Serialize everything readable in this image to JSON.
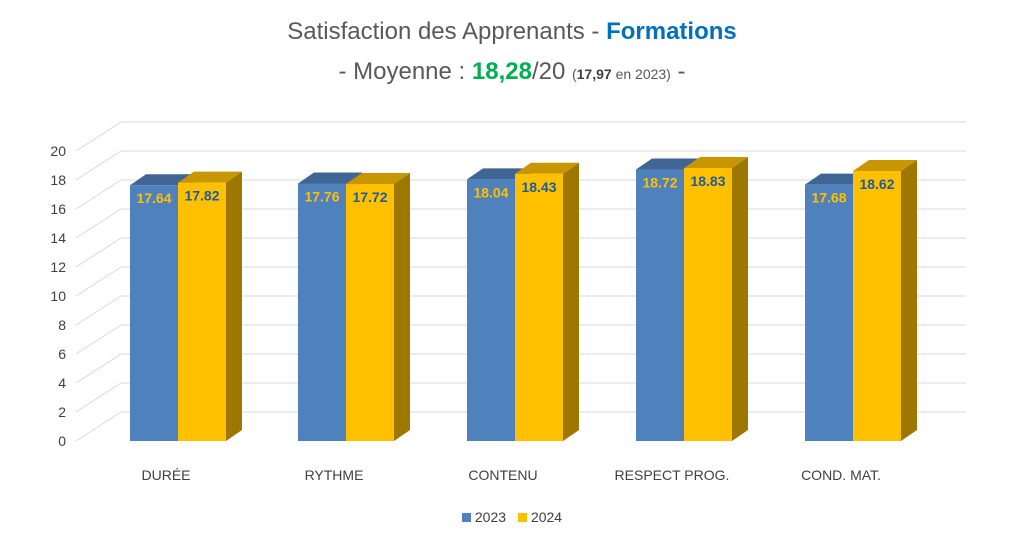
{
  "title": {
    "main": "Satisfaction des Apprenants - ",
    "accent": "Formations"
  },
  "subtitle": {
    "prefix": "- Moyenne : ",
    "average": "18,28",
    "scale": "/20 ",
    "prev_open": "(",
    "prev_value": "17,97",
    "prev_rest": " en 2023)",
    "suffix": " -"
  },
  "colors": {
    "series_2023": "#4f81bd",
    "series_2024": "#ffc000",
    "label_2023": "#ffc000",
    "label_2024": "#1f5c99",
    "grid": "#d9d9d9",
    "axis_text": "#404040"
  },
  "chart_data": {
    "type": "bar",
    "categories": [
      "DURÉE",
      "RYTHME",
      "CONTENU",
      "RESPECT PROG.",
      "COND. MAT."
    ],
    "series": [
      {
        "name": "2023",
        "values": [
          17.64,
          17.76,
          18.04,
          18.72,
          17.68
        ]
      },
      {
        "name": "2024",
        "values": [
          17.82,
          17.72,
          18.43,
          18.83,
          18.62
        ]
      }
    ],
    "yticks": [
      "0",
      "2",
      "4",
      "6",
      "8",
      "10",
      "12",
      "14",
      "16",
      "18",
      "20"
    ],
    "ylim": [
      0,
      20
    ],
    "grid": true,
    "three_d": true,
    "legend_position": "bottom"
  }
}
